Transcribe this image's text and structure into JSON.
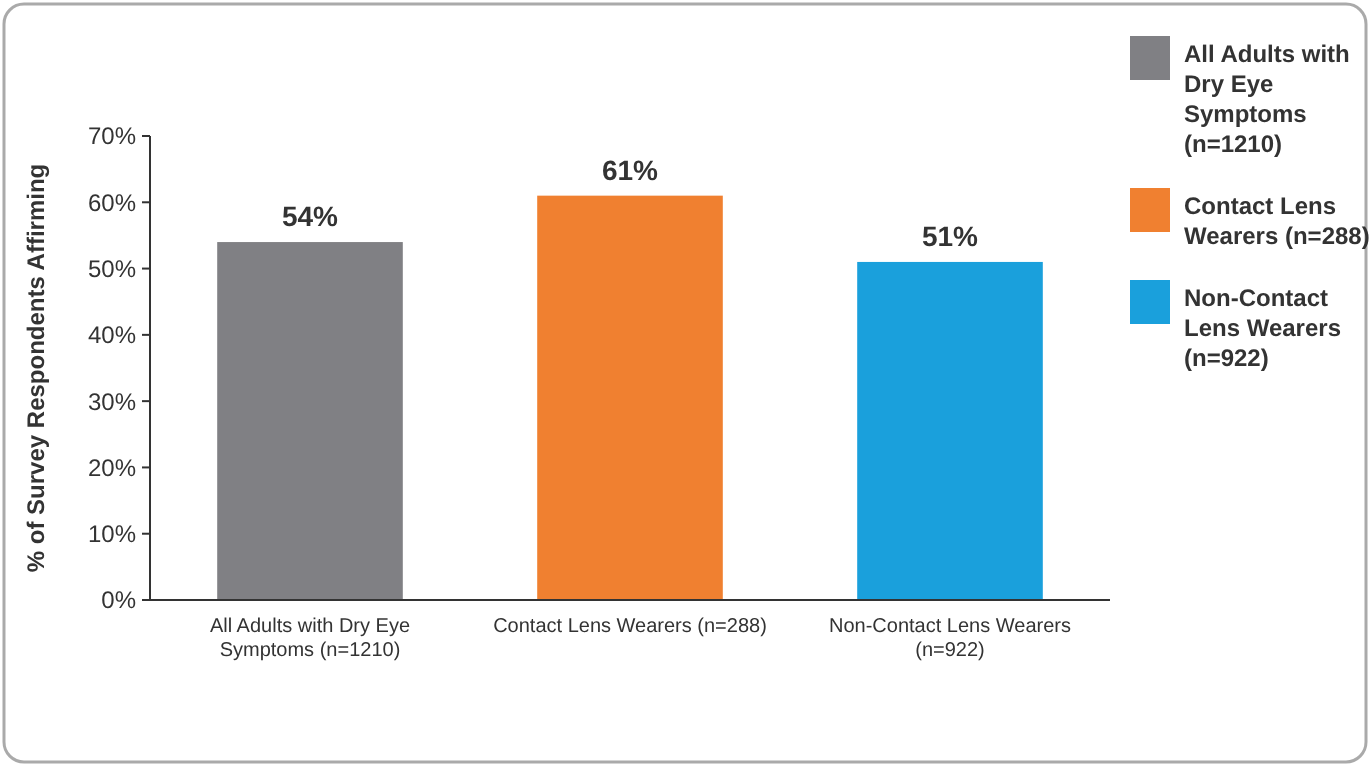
{
  "chart_data": {
    "type": "bar",
    "ylabel": "% of Survey Respondents Affirming",
    "categories": [
      "All Adults with Dry Eye Symptoms (n=1210)",
      "Contact Lens Wearers (n=288)",
      "Non-Contact Lens Wearers (n=922)"
    ],
    "series": [
      {
        "name": "All Adults with Dry Eye Symptoms (n=1210)",
        "color": "#808084",
        "values": [
          54,
          null,
          null
        ],
        "value_labels": [
          "54%",
          null,
          null
        ]
      },
      {
        "name": "Contact Lens Wearers (n=288)",
        "color": "#f08030",
        "values": [
          null,
          61,
          null
        ],
        "value_labels": [
          null,
          "61%",
          null
        ]
      },
      {
        "name": "Non-Contact Lens Wearers (n=922)",
        "color": "#1aa0dc",
        "values": [
          null,
          null,
          51
        ],
        "value_labels": [
          null,
          null,
          "51%"
        ]
      }
    ],
    "ylim": [
      0,
      70
    ],
    "yticks": [
      {
        "value": 0,
        "label": "0%"
      },
      {
        "value": 10,
        "label": "10%"
      },
      {
        "value": 20,
        "label": "20%"
      },
      {
        "value": 30,
        "label": "30%"
      },
      {
        "value": 40,
        "label": "40%"
      },
      {
        "value": 50,
        "label": "50%"
      },
      {
        "value": 60,
        "label": "60%"
      },
      {
        "value": 70,
        "label": "70%"
      }
    ],
    "legend": "right"
  }
}
